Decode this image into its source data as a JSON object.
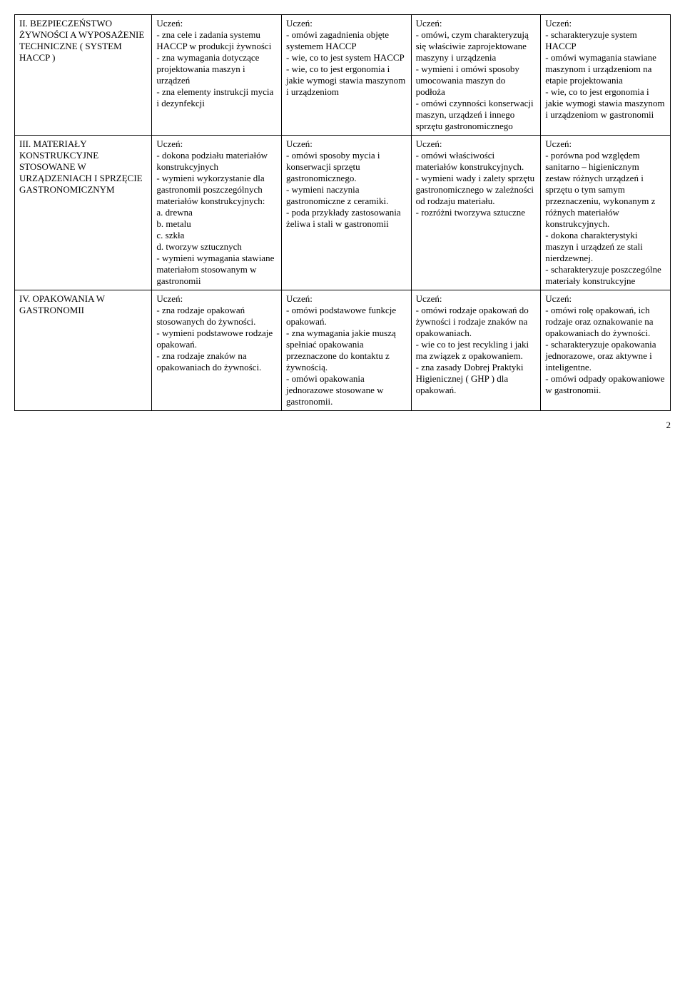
{
  "rows": [
    {
      "topic": "II. BEZPIECZEŃSTWO ŻYWNOŚCI A WYPOSAŻENIE TECHNICZNE ( SYSTEM HACCP )",
      "c1": "Uczeń:\n- zna cele i zadania systemu HACCP w produkcji żywności\n- zna wymagania dotyczące projektowania maszyn i urządzeń\n- zna elementy instrukcji mycia i dezynfekcji",
      "c2": "Uczeń:\n- omówi zagadnienia objęte systemem HACCP\n- wie, co to jest system HACCP\n- wie, co to jest ergonomia i jakie wymogi stawia maszynom i urządzeniom",
      "c3": "Uczeń:\n- omówi, czym charakteryzują się właściwie zaprojektowane maszyny i urządzenia\n- wymieni i omówi sposoby umocowania maszyn do podłoża\n- omówi czynności konserwacji maszyn, urządzeń i innego sprzętu gastronomicznego",
      "c4": "Uczeń:\n- scharakteryzuje system HACCP\n- omówi wymagania stawiane maszynom i urządzeniom na etapie projektowania\n- wie, co to jest ergonomia i jakie wymogi stawia maszynom i urządzeniom w gastronomii"
    },
    {
      "topic": "III. MATERIAŁY KONSTRUKCYJNE STOSOWANE W URZĄDZENIACH I SPRZĘCIE GASTRONOMICZNYM",
      "c1": "Uczeń:\n- dokona podziału materiałów konstrukcyjnych\n- wymieni wykorzystanie dla gastronomii poszczególnych materiałów konstrukcyjnych:\na. drewna\nb. metalu\nc. szkła\nd. tworzyw sztucznych\n- wymieni wymagania stawiane materiałom stosowanym w gastronomii",
      "c2": "Uczeń:\n- omówi sposoby mycia i konserwacji sprzętu gastronomicznego.\n- wymieni naczynia gastronomiczne z ceramiki.\n- poda przykłady zastosowania żeliwa i stali w gastronomii",
      "c3": "Uczeń:\n- omówi właściwości materiałów konstrukcyjnych.\n- wymieni wady i zalety sprzętu gastronomicznego w zależności od rodzaju materiału.\n- rozróżni tworzywa sztuczne",
      "c4": "Uczeń:\n- porówna pod względem sanitarno – higienicznym zestaw różnych urządzeń i sprzętu o tym samym przeznaczeniu, wykonanym z różnych materiałów konstrukcyjnych.\n- dokona charakterystyki maszyn i urządzeń ze stali nierdzewnej.\n- scharakteryzuje poszczególne materiały konstrukcyjne"
    },
    {
      "topic": "IV. OPAKOWANIA W GASTRONOMII",
      "c1": "Uczeń:\n- zna rodzaje opakowań stosowanych do żywności.\n- wymieni podstawowe rodzaje opakowań.\n- zna rodzaje znaków na opakowaniach do żywności.",
      "c2": "Uczeń:\n- omówi podstawowe funkcje opakowań.\n- zna wymagania jakie muszą spełniać opakowania przeznaczone do kontaktu z żywnością.\n- omówi opakowania jednorazowe stosowane w gastronomii.",
      "c3": "Uczeń:\n- omówi rodzaje opakowań do żywności i rodzaje znaków na opakowaniach.\n- wie co to jest recykling i jaki ma związek z opakowaniem.\n- zna zasady Dobrej Praktyki Higienicznej ( GHP ) dla opakowań.",
      "c4": "Uczeń:\n- omówi rolę opakowań, ich rodzaje oraz oznakowanie na opakowaniach do żywności.\n- scharakteryzuje opakowania jednorazowe, oraz aktywne i inteligentne.\n- omówi odpady opakowaniowe w gastronomii."
    }
  ],
  "pageNumber": "2"
}
